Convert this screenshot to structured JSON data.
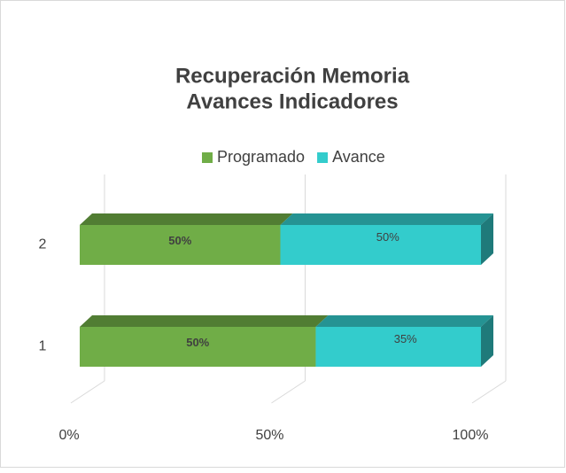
{
  "chart_data": {
    "type": "bar3d_stacked_percent_horizontal",
    "title": [
      "Recuperación Memoria",
      "Avances Indicadores"
    ],
    "categories": [
      "1",
      "2"
    ],
    "series": [
      {
        "name": "Programado",
        "color": "#70ad47",
        "values": [
          50,
          50
        ],
        "value_labels": [
          "50%",
          "50%"
        ]
      },
      {
        "name": "Avance",
        "color": "#33cccc",
        "values": [
          35,
          50
        ],
        "value_labels": [
          "35%",
          "50%"
        ]
      }
    ],
    "xlim": [
      0,
      100
    ],
    "xticks": [
      {
        "value": 0,
        "label": "0%"
      },
      {
        "value": 50,
        "label": "50%"
      },
      {
        "value": 100,
        "label": "100%"
      }
    ],
    "grid": true,
    "legend": "top"
  }
}
